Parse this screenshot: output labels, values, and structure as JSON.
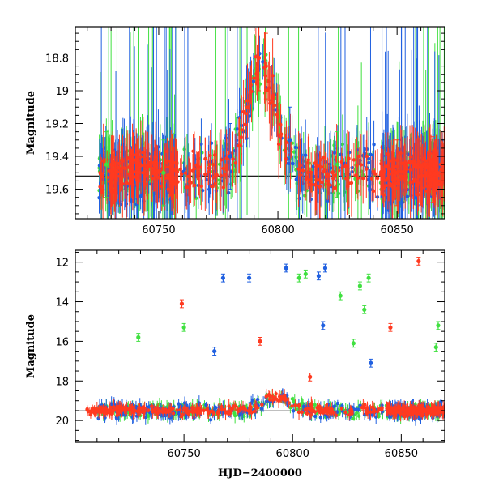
{
  "chart_data": [
    {
      "type": "scatter",
      "panel": "top",
      "ylabel": "Magnitude",
      "xlim": [
        60715,
        60870
      ],
      "ylim": [
        19.78,
        18.61
      ],
      "y_inverted": true,
      "x_ticks": [
        60750,
        60800,
        60850
      ],
      "y_ticks": [
        18.8,
        19.0,
        19.2,
        19.4,
        19.6
      ],
      "y_tick_labels": [
        "18.8",
        "19",
        "19.2",
        "19.4",
        "19.6"
      ],
      "reference_line": 19.52,
      "series_colors": [
        "#2060e0",
        "#40e040",
        "#ff3a20"
      ],
      "approx_points": [
        {
          "series": 1,
          "x": 60728,
          "y": 19.45
        },
        {
          "series": 1,
          "x": 60752,
          "y": 19.5
        },
        {
          "series": 0,
          "x": 60780,
          "y": 19.4
        },
        {
          "series": 2,
          "x": 60792,
          "y": 18.8
        },
        {
          "series": 2,
          "x": 60795,
          "y": 18.85
        },
        {
          "series": 0,
          "x": 60805,
          "y": 19.3
        },
        {
          "series": 1,
          "x": 60825,
          "y": 19.45
        },
        {
          "series": 2,
          "x": 60850,
          "y": 19.5
        },
        {
          "series": 2,
          "x": 60865,
          "y": 19.48
        }
      ]
    },
    {
      "type": "scatter",
      "panel": "bottom",
      "xlabel": "HJD−2400000",
      "ylabel": "Magnitude",
      "xlim": [
        60700,
        60870
      ],
      "ylim": [
        21.1,
        11.4
      ],
      "y_inverted": true,
      "x_ticks": [
        60750,
        60800,
        60850
      ],
      "y_ticks": [
        12,
        14,
        16,
        18,
        20
      ],
      "reference_line": 19.52,
      "series_colors": [
        "#2060e0",
        "#40e040",
        "#ff3a20"
      ],
      "outliers": [
        {
          "series": 0,
          "x": 60768,
          "y": 12.8
        },
        {
          "series": 0,
          "x": 60780,
          "y": 12.8
        },
        {
          "series": 0,
          "x": 60797,
          "y": 12.3
        },
        {
          "series": 0,
          "x": 60812,
          "y": 12.7
        },
        {
          "series": 0,
          "x": 60815,
          "y": 12.3
        },
        {
          "series": 0,
          "x": 60764,
          "y": 16.5
        },
        {
          "series": 0,
          "x": 60814,
          "y": 15.2
        },
        {
          "series": 0,
          "x": 60836,
          "y": 17.1
        },
        {
          "series": 1,
          "x": 60729,
          "y": 15.8
        },
        {
          "series": 1,
          "x": 60750,
          "y": 15.3
        },
        {
          "series": 1,
          "x": 60803,
          "y": 12.8
        },
        {
          "series": 1,
          "x": 60806,
          "y": 12.6
        },
        {
          "series": 1,
          "x": 60822,
          "y": 13.7
        },
        {
          "series": 1,
          "x": 60831,
          "y": 13.2
        },
        {
          "series": 1,
          "x": 60833,
          "y": 14.4
        },
        {
          "series": 1,
          "x": 60835,
          "y": 12.8
        },
        {
          "series": 1,
          "x": 60828,
          "y": 16.1
        },
        {
          "series": 1,
          "x": 60867,
          "y": 15.2
        },
        {
          "series": 1,
          "x": 60866,
          "y": 16.3
        },
        {
          "series": 2,
          "x": 60749,
          "y": 14.1
        },
        {
          "series": 2,
          "x": 60785,
          "y": 16.0
        },
        {
          "series": 2,
          "x": 60845,
          "y": 15.3
        },
        {
          "series": 2,
          "x": 60858,
          "y": 11.95
        },
        {
          "series": 2,
          "x": 60808,
          "y": 17.8
        }
      ]
    }
  ]
}
